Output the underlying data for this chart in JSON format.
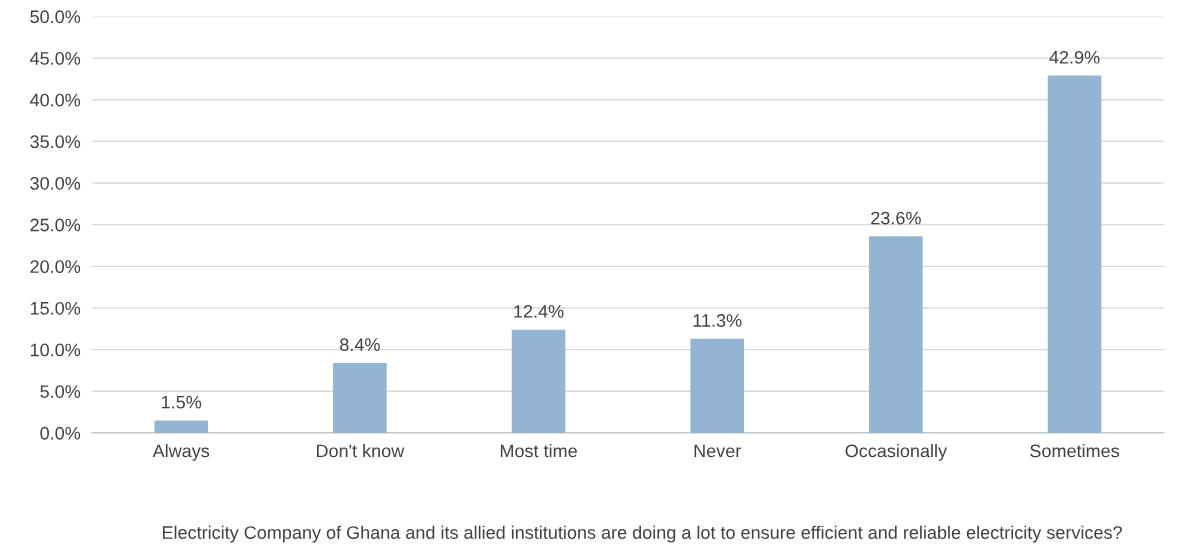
{
  "chart_data": {
    "type": "bar",
    "xlabel": "Electricity Company of Ghana and its allied institutions are doing a lot to ensure efficient and reliable electricity services?",
    "categories": [
      "Always",
      "Don't know",
      "Most time",
      "Never",
      "Occasionally",
      "Sometimes"
    ],
    "values": [
      1.5,
      8.4,
      12.4,
      11.3,
      23.6,
      42.9
    ],
    "value_labels": [
      "1.5%",
      "8.4%",
      "12.4%",
      "11.3%",
      "23.6%",
      "42.9%"
    ],
    "color": "#93b5d3",
    "ylim": [
      0,
      50
    ],
    "yticks": [
      {
        "value": 0,
        "label": "0.0%"
      },
      {
        "value": 5,
        "label": "5.0%"
      },
      {
        "value": 10,
        "label": "10.0%"
      },
      {
        "value": 15,
        "label": "15.0%"
      },
      {
        "value": 20,
        "label": "20.0%"
      },
      {
        "value": 25,
        "label": "25.0%"
      },
      {
        "value": 30,
        "label": "30.0%"
      },
      {
        "value": 35,
        "label": "35.0%"
      },
      {
        "value": 40,
        "label": "40.0%"
      },
      {
        "value": 45,
        "label": "45.0%"
      },
      {
        "value": 50,
        "label": "50.0%"
      }
    ],
    "grid": "y",
    "legend": false
  }
}
